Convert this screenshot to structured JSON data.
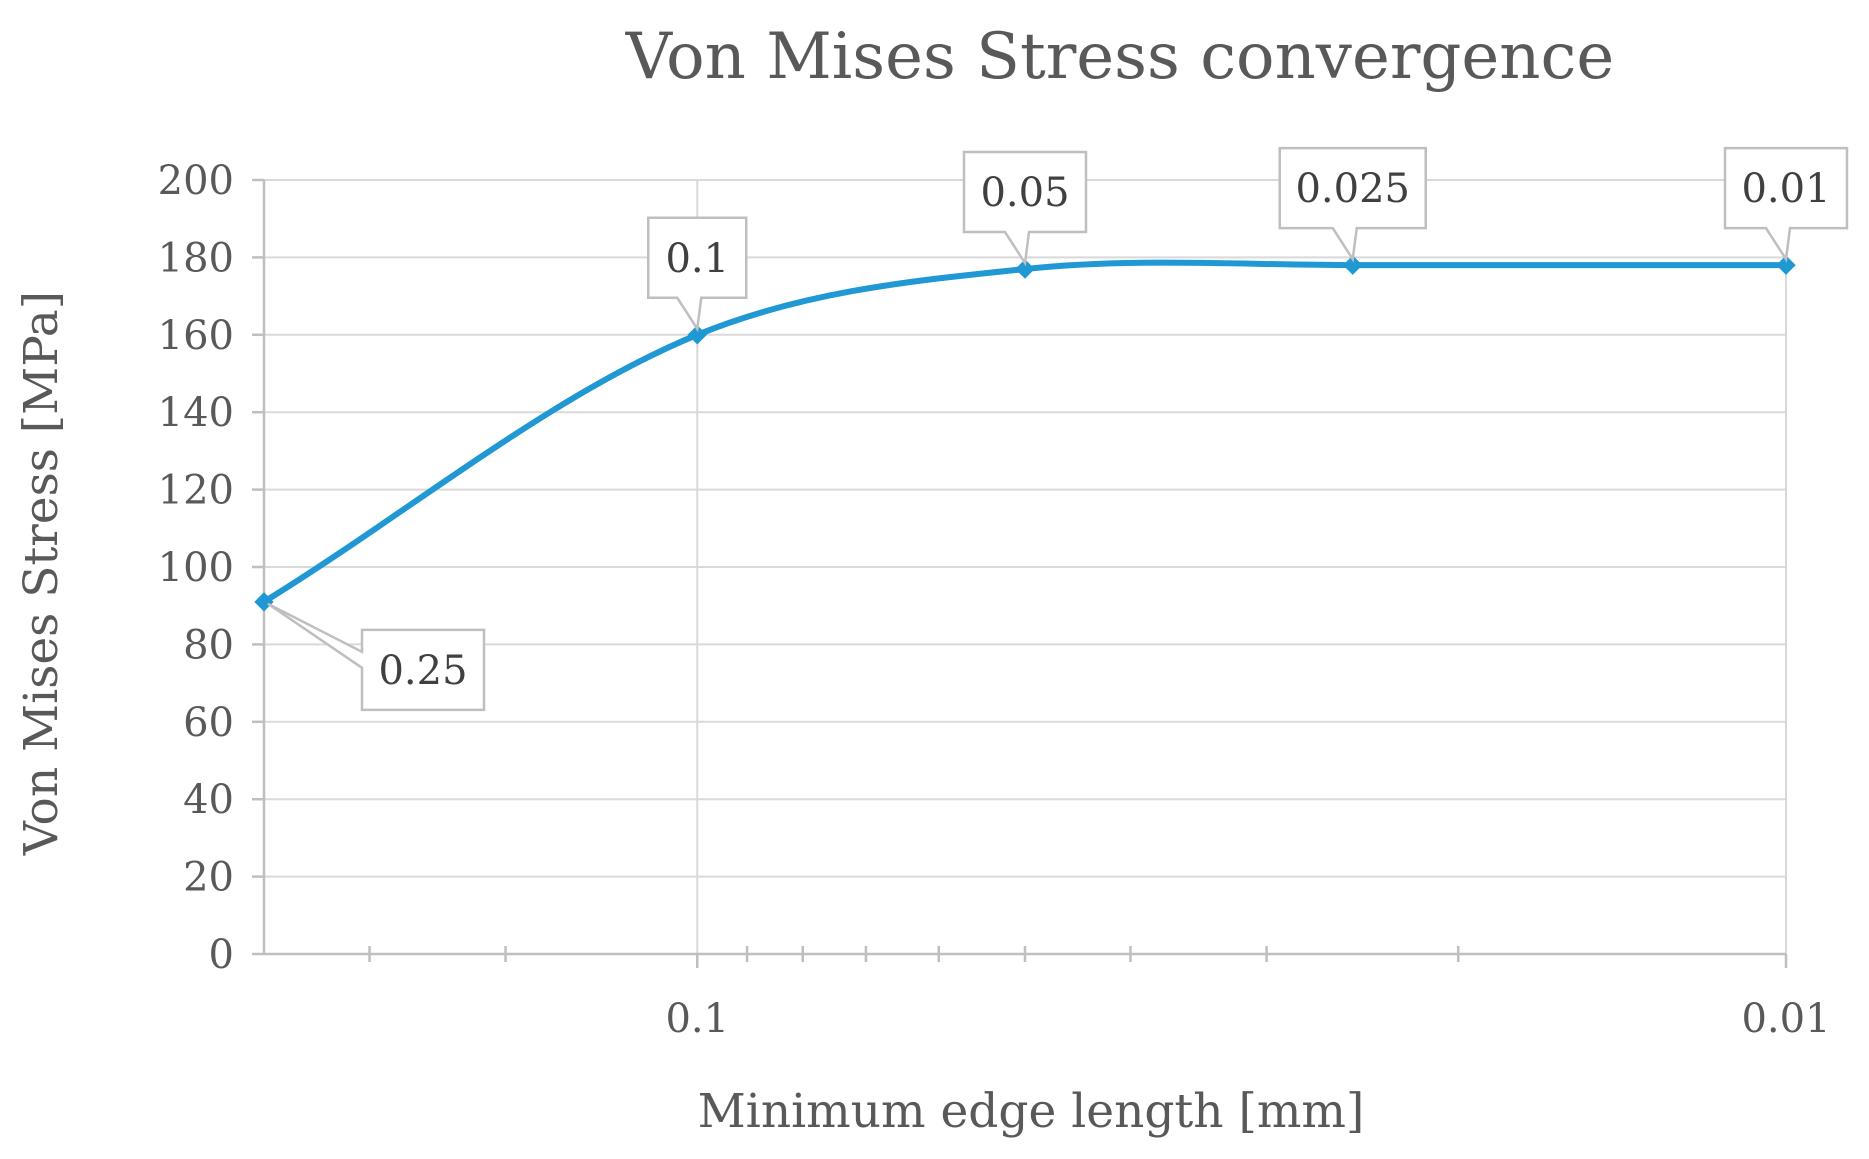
{
  "chart_data": {
    "type": "line",
    "title": "Von Mises Stress convergence",
    "xlabel": "Minimum edge length [mm]",
    "ylabel": "Von Mises Stress [MPa]",
    "x_scale": "log-reversed",
    "xlim": [
      0.25,
      0.01
    ],
    "ylim": [
      0,
      200
    ],
    "y_ticks": [
      0,
      20,
      40,
      60,
      80,
      100,
      120,
      140,
      160,
      180,
      200
    ],
    "x_tick_labels": [
      {
        "value": 0.1,
        "label": "0.1"
      },
      {
        "value": 0.01,
        "label": "0.01"
      }
    ],
    "x_minor_ticks": [
      0.2,
      0.15,
      0.09,
      0.08,
      0.07,
      0.06,
      0.05,
      0.04,
      0.03,
      0.02
    ],
    "grid": true,
    "series": [
      {
        "color": "#1f98d4",
        "points": [
          {
            "x": 0.25,
            "y": 91,
            "label": "0.25"
          },
          {
            "x": 0.1,
            "y": 160,
            "label": "0.1"
          },
          {
            "x": 0.05,
            "y": 177,
            "label": "0.05"
          },
          {
            "x": 0.025,
            "y": 178,
            "label": "0.025"
          },
          {
            "x": 0.01,
            "y": 178,
            "label": "0.01"
          }
        ]
      }
    ]
  }
}
